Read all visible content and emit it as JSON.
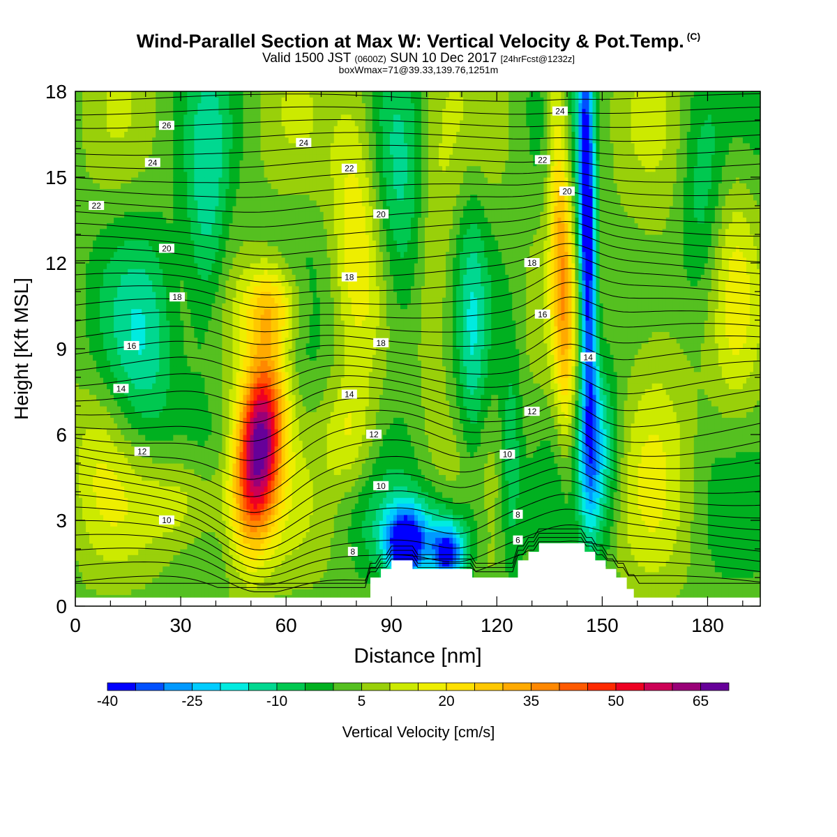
{
  "title": "Wind-Parallel Section at Max W: Vertical Velocity & Pot.Temp.",
  "title_tag": "(C)",
  "subtitle": {
    "part1": "Valid 1500 JST",
    "part2": "(0600Z)",
    "part3": "SUN 10 Dec 2017",
    "part4": "[24hrFcst@1232z]"
  },
  "subtitle2": "boxWmax=71@39.33,139.76,1251m",
  "chart_data": {
    "type": "heatmap",
    "xlabel": "Distance [nm]",
    "ylabel": "Height [Kft MSL]",
    "xlim": [
      0,
      195
    ],
    "ylim": [
      0,
      18
    ],
    "x_ticks": [
      0,
      30,
      60,
      90,
      120,
      150,
      180
    ],
    "y_ticks": [
      0,
      3,
      6,
      9,
      12,
      15,
      18
    ],
    "colorbar": {
      "label": "Vertical Velocity [cm/s]",
      "min": -40,
      "max": 70,
      "step": 5,
      "tick_labels": [
        "-40",
        "-25",
        "-10",
        "5",
        "20",
        "35",
        "50",
        "65"
      ],
      "colors": [
        "#0000ff",
        "#0050ff",
        "#0099ff",
        "#00ccff",
        "#00ebe0",
        "#00d890",
        "#00c850",
        "#00b020",
        "#55c020",
        "#99d00a",
        "#ccea00",
        "#eeee00",
        "#ffe000",
        "#ffc800",
        "#ffaa00",
        "#ff8800",
        "#ff5a00",
        "#ff2a00",
        "#ee0022",
        "#cc0055",
        "#990077",
        "#660099"
      ]
    },
    "vertical_velocity_features": [
      {
        "x": 50,
        "y": 5.5,
        "value": 71
      },
      {
        "x": 56,
        "y": 6,
        "value": 55
      },
      {
        "x": 138,
        "y": 14,
        "value": 30
      },
      {
        "x": 146,
        "y": 15,
        "value": -30
      },
      {
        "x": 94,
        "y": 2,
        "value": -25
      },
      {
        "x": 107,
        "y": 1.6,
        "value": -25
      }
    ],
    "terrain": [
      [
        84,
        0.4
      ],
      [
        84,
        1.0
      ],
      [
        87,
        1.0
      ],
      [
        87,
        1.3
      ],
      [
        90,
        1.3
      ],
      [
        90,
        1.6
      ],
      [
        96,
        1.6
      ],
      [
        96,
        1.3
      ],
      [
        113,
        1.3
      ],
      [
        113,
        1.0
      ],
      [
        126,
        1.0
      ],
      [
        126,
        1.6
      ],
      [
        129,
        1.6
      ],
      [
        129,
        1.9
      ],
      [
        132,
        1.9
      ],
      [
        132,
        2.2
      ],
      [
        145,
        2.2
      ],
      [
        145,
        1.9
      ],
      [
        148,
        1.9
      ],
      [
        148,
        1.6
      ],
      [
        151,
        1.6
      ],
      [
        151,
        1.3
      ],
      [
        154,
        1.3
      ],
      [
        154,
        1.0
      ],
      [
        157,
        1.0
      ],
      [
        157,
        0.6
      ],
      [
        159,
        0.6
      ],
      [
        159,
        0.3
      ],
      [
        195,
        0.3
      ],
      [
        195,
        0
      ],
      [
        0,
        0
      ],
      [
        0,
        0.3
      ],
      [
        84,
        0.3
      ]
    ],
    "theta_labels": [
      {
        "text": "26",
        "x": 26,
        "y": 16.8
      },
      {
        "text": "24",
        "x": 22,
        "y": 15.5
      },
      {
        "text": "22",
        "x": 6,
        "y": 14
      },
      {
        "text": "20",
        "x": 26,
        "y": 12.5
      },
      {
        "text": "18",
        "x": 29,
        "y": 10.8
      },
      {
        "text": "16",
        "x": 16,
        "y": 9.1
      },
      {
        "text": "14",
        "x": 13,
        "y": 7.6
      },
      {
        "text": "12",
        "x": 19,
        "y": 5.4
      },
      {
        "text": "10",
        "x": 26,
        "y": 3
      },
      {
        "text": "24",
        "x": 65,
        "y": 16.2
      },
      {
        "text": "22",
        "x": 78,
        "y": 15.3
      },
      {
        "text": "20",
        "x": 87,
        "y": 13.7
      },
      {
        "text": "18",
        "x": 78,
        "y": 11.5
      },
      {
        "text": "18",
        "x": 87,
        "y": 9.2
      },
      {
        "text": "14",
        "x": 78,
        "y": 7.4
      },
      {
        "text": "12",
        "x": 85,
        "y": 6
      },
      {
        "text": "10",
        "x": 87,
        "y": 4.2
      },
      {
        "text": "8",
        "x": 79,
        "y": 1.9
      },
      {
        "text": "24",
        "x": 138,
        "y": 17.3
      },
      {
        "text": "22",
        "x": 133,
        "y": 15.6
      },
      {
        "text": "20",
        "x": 140,
        "y": 14.5
      },
      {
        "text": "18",
        "x": 130,
        "y": 12
      },
      {
        "text": "16",
        "x": 133,
        "y": 10.2
      },
      {
        "text": "14",
        "x": 146,
        "y": 8.7
      },
      {
        "text": "12",
        "x": 130,
        "y": 6.8
      },
      {
        "text": "10",
        "x": 123,
        "y": 5.3
      },
      {
        "text": "8",
        "x": 126,
        "y": 3.2
      },
      {
        "text": "6",
        "x": 126,
        "y": 2.3
      }
    ],
    "grid": false
  }
}
